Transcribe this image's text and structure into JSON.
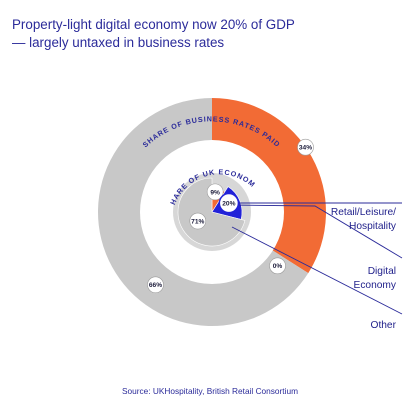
{
  "header": {
    "title_line1": "Property-light digital economy now 20% of GDP",
    "title_line2": "— largely untaxed in business rates"
  },
  "source": "Source: UKHospitality, British Retail Consortium",
  "colors": {
    "retail": "#f26b35",
    "digital": "#ffffff",
    "other": "#c8c8c8",
    "economy_retail": "#f26b35",
    "economy_digital": "#2222d8",
    "economy_other": "#c8c8c8",
    "line": "#2b2b9a"
  },
  "chart_data": [
    {
      "type": "pie",
      "title": "SHARE OF BUSINESS RATES PAID",
      "categories": [
        "Retail/Leisure/Hospitality",
        "Digital Economy",
        "Other"
      ],
      "values": [
        34,
        0,
        66
      ],
      "labels": [
        "34%",
        "0%",
        "66%"
      ]
    },
    {
      "type": "pie",
      "title": "SHARE OF UK ECONOMY",
      "categories": [
        "Retail/Leisure/Hospitality",
        "Digital Economy",
        "Other"
      ],
      "values": [
        9,
        20,
        71
      ],
      "labels": [
        "9%",
        "20%",
        "71%"
      ]
    }
  ],
  "legend": [
    "Retail/Leisure/",
    "Hospitality",
    "Digital",
    "Economy",
    "Other"
  ]
}
